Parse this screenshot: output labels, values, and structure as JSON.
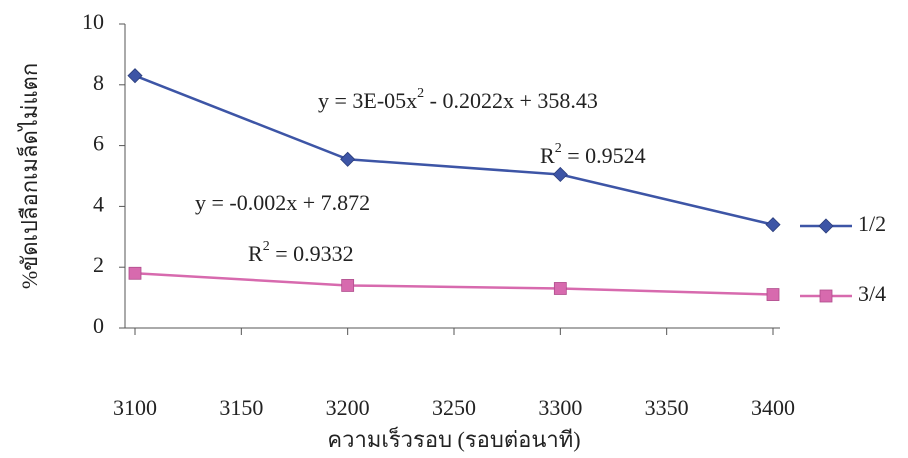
{
  "chart_data": {
    "type": "line",
    "x": [
      3100,
      3200,
      3300,
      3400
    ],
    "xlabel": "ความเร็วรอบ (รอบต่อนาที)",
    "ylabel": "%ขัดเปลือกเมล็ดไม่แตก",
    "series": [
      {
        "name": "1/2",
        "color": "#3d55a6",
        "marker": "diamond",
        "values": [
          8.3,
          5.55,
          5.05,
          3.4
        ]
      },
      {
        "name": "3/4",
        "color": "#d76aae",
        "marker": "square",
        "values": [
          1.8,
          1.4,
          1.3,
          1.1
        ]
      }
    ],
    "xlim": [
      3100,
      3400
    ],
    "xticks": [
      3100,
      3150,
      3200,
      3250,
      3300,
      3350,
      3400
    ],
    "ylim": [
      0,
      10
    ],
    "yticks": [
      0,
      2,
      4,
      6,
      8,
      10
    ],
    "legend": "right",
    "annotations": [
      {
        "text": [
          "y = 3E-05x",
          "2",
          " - 0.2022x + 358.43"
        ]
      },
      {
        "text": [
          "R",
          "2",
          " = 0.9524"
        ]
      },
      {
        "text": [
          "y = -0.002x + 7.872"
        ]
      },
      {
        "text": [
          "R",
          "2",
          " = 0.9332"
        ]
      }
    ]
  }
}
